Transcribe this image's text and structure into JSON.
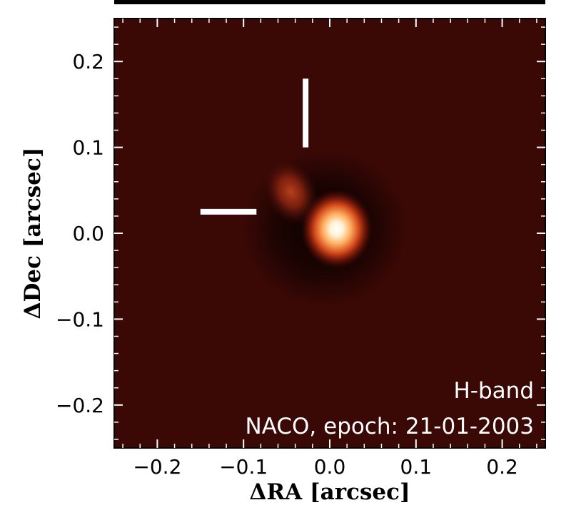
{
  "chart_data": {
    "type": "heatmap",
    "title": "",
    "xlabel": "ΔRA [arcsec]",
    "ylabel": "ΔDec [arcsec]",
    "xlim": [
      -0.25,
      0.25
    ],
    "ylim": [
      -0.25,
      0.25
    ],
    "xticks": [
      -0.2,
      -0.1,
      0.0,
      0.1,
      0.2
    ],
    "yticks": [
      -0.2,
      -0.1,
      0.0,
      0.1,
      0.2
    ],
    "xtick_labels": [
      "−0.2",
      "−0.1",
      "0.0",
      "0.1",
      "0.2"
    ],
    "ytick_labels": [
      "−0.2",
      "−0.1",
      "0.0",
      "0.1",
      "0.2"
    ],
    "colormap": "gist_heat",
    "background_color": "#3a0805",
    "sources": [
      {
        "name": "primary",
        "x": 0.008,
        "y": 0.005,
        "peak": 1.0
      },
      {
        "name": "companion",
        "x": -0.045,
        "y": 0.048,
        "peak": 0.45
      }
    ],
    "markers": [
      {
        "name": "vertical-marker",
        "x": -0.028,
        "y_range": [
          0.1,
          0.18
        ]
      },
      {
        "name": "horizontal-marker",
        "y": 0.025,
        "x_range": [
          -0.15,
          -0.085
        ]
      }
    ],
    "annotations": {
      "band": "H-band",
      "epoch": "NACO, epoch: 21-01-2003"
    }
  }
}
